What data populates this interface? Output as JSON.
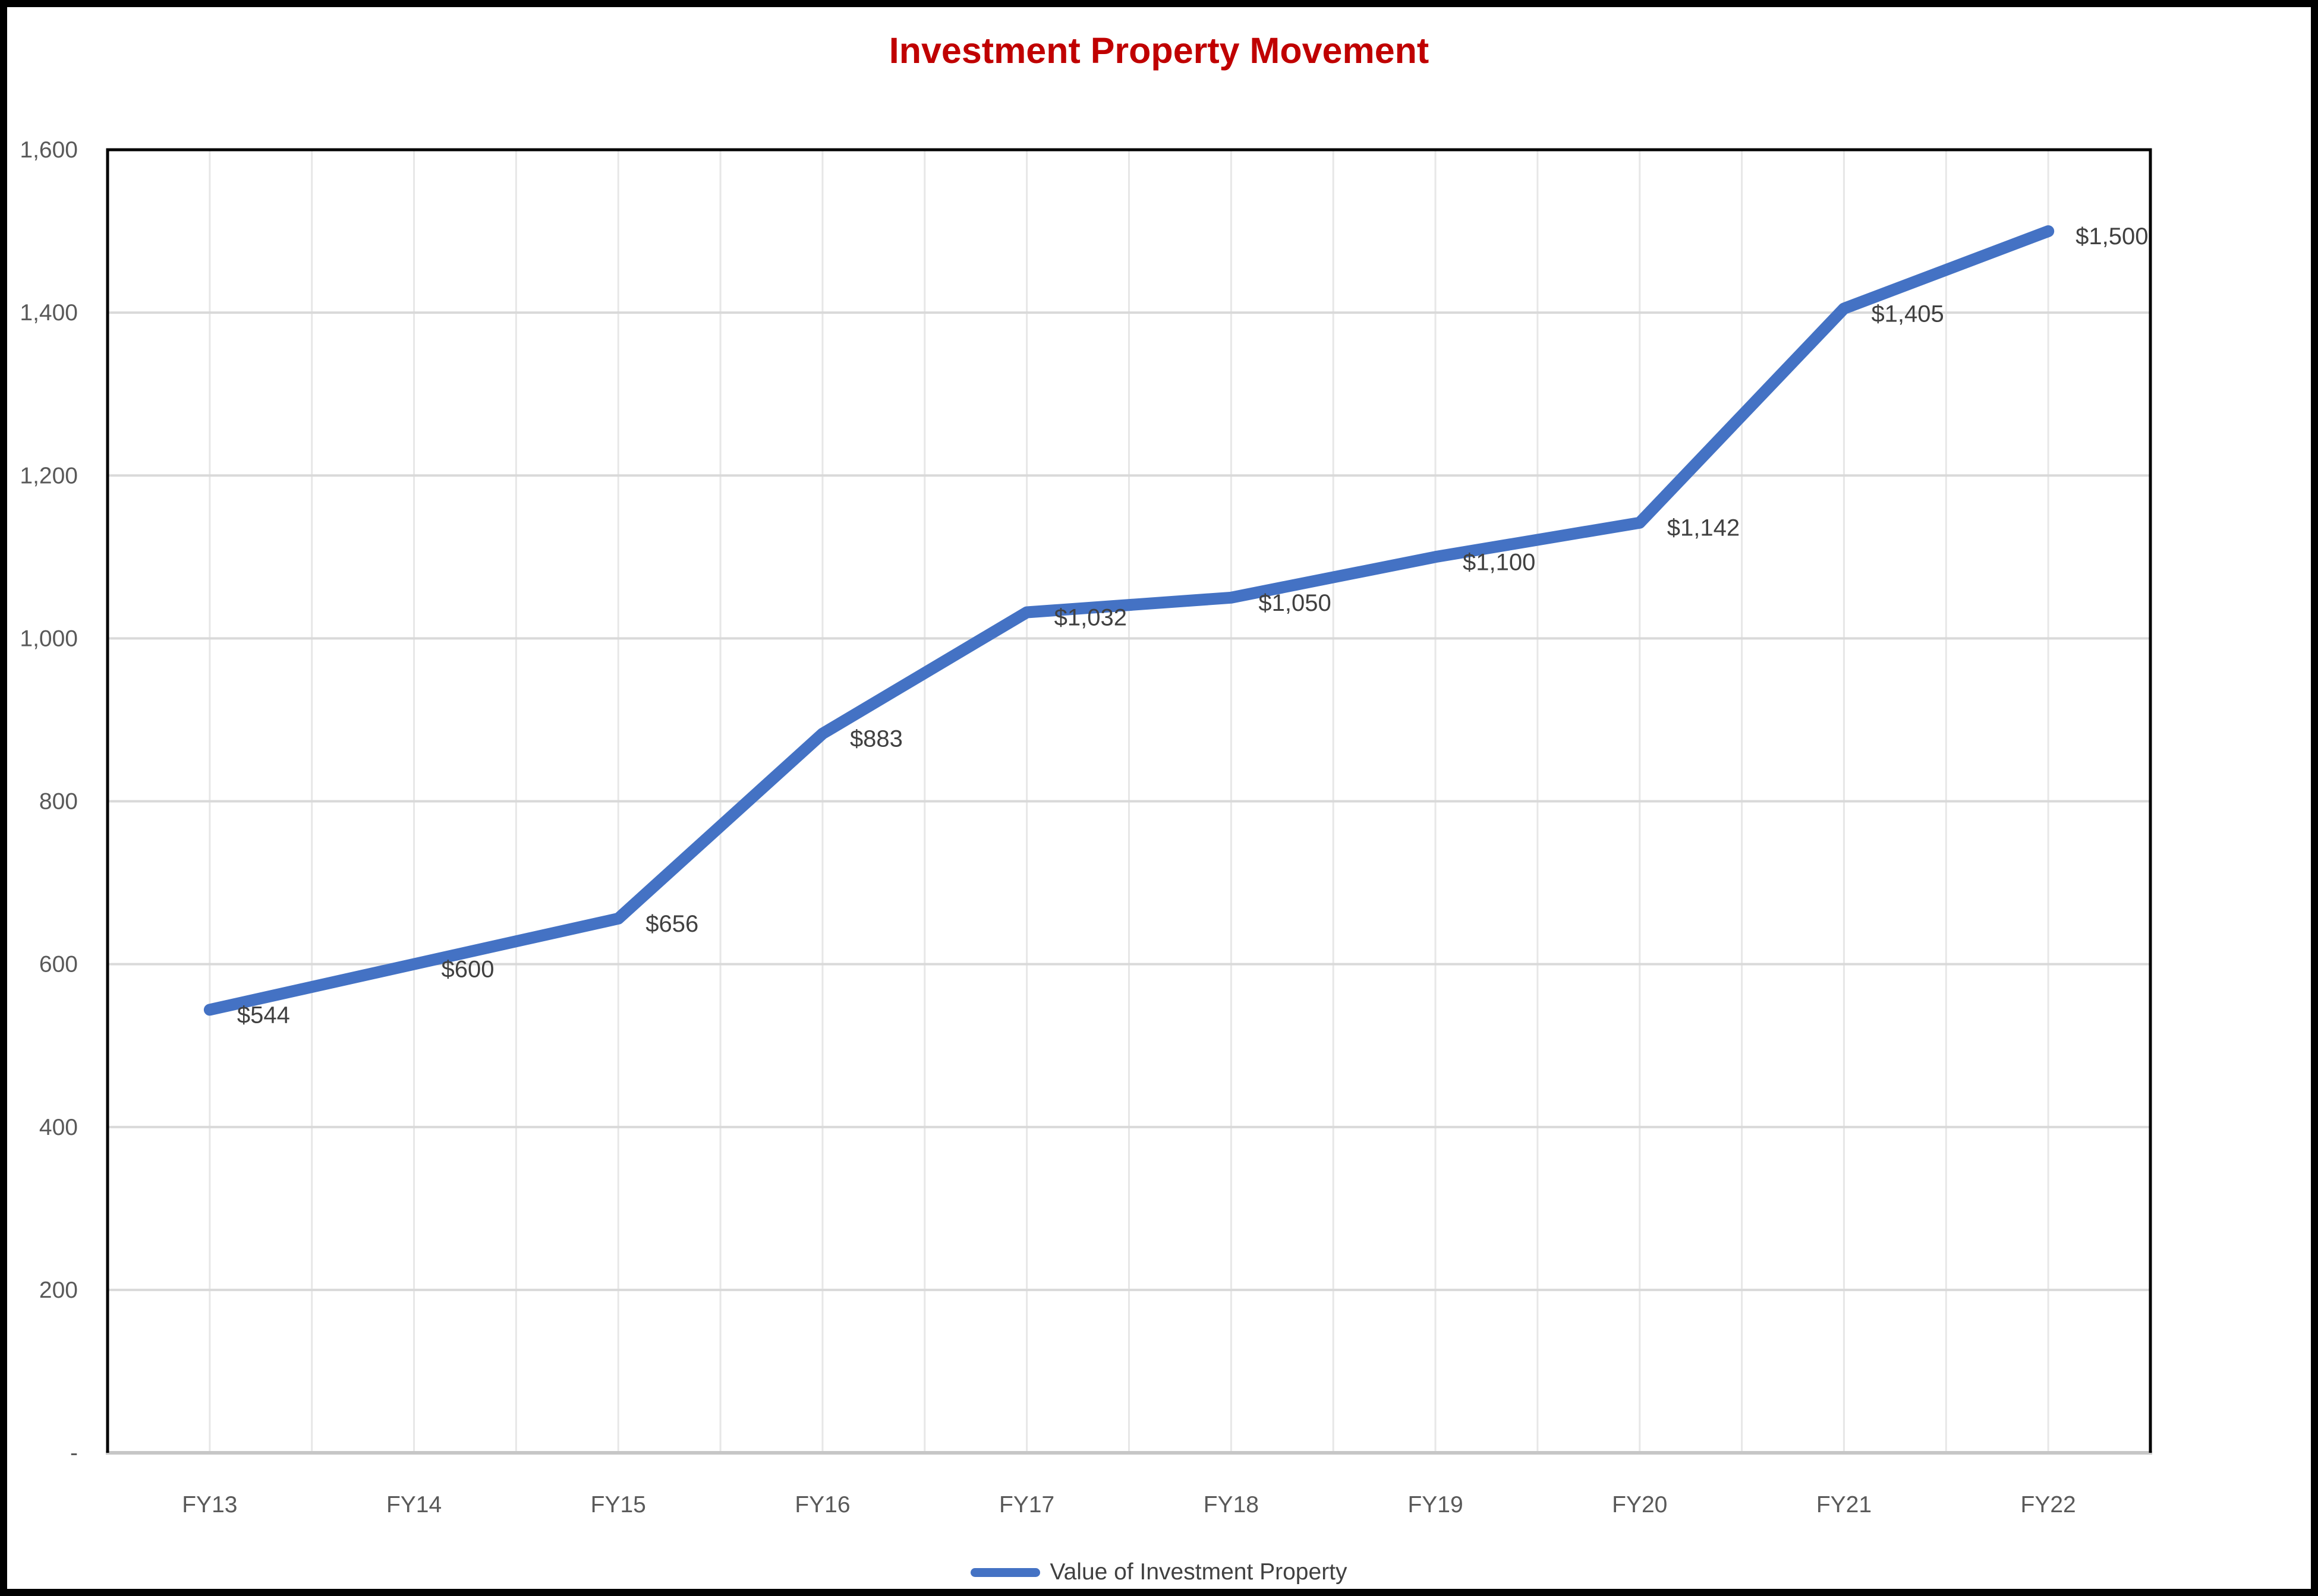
{
  "title": {
    "text": "Investment Property Movement"
  },
  "legend": {
    "items": [
      {
        "label": "Value of Investment Property"
      }
    ]
  },
  "colors": {
    "title": "#C00000",
    "series_line": "#4472C4",
    "data_label": "#404040",
    "axis_text": "#595959",
    "gridline_h": "#D9D9D9",
    "gridline_v": "#E7E7E7",
    "plot_border": "#000000",
    "x_axis_line": "#C6C6C6",
    "frame": "#000000",
    "background": "#FFFFFF"
  },
  "chart_data": {
    "type": "line",
    "title": "Investment Property Movement",
    "categories": [
      "FY13",
      "FY14",
      "FY15",
      "FY16",
      "FY17",
      "FY18",
      "FY19",
      "FY20",
      "FY21",
      "FY22"
    ],
    "series": [
      {
        "name": "Value of Investment Property",
        "values": [
          544,
          600,
          656,
          883,
          1032,
          1050,
          1100,
          1142,
          1405,
          1500
        ],
        "data_labels": [
          "$544",
          "$600",
          "$656",
          "$883",
          "$1,032",
          "$1,050",
          "$1,100",
          "$1,142",
          "$1,405",
          "$1,500"
        ]
      }
    ],
    "xlabel": "",
    "ylabel": "",
    "ylim": [
      0,
      1600
    ],
    "y_ticks": [
      {
        "value": 0,
        "label": "-"
      },
      {
        "value": 200,
        "label": "200"
      },
      {
        "value": 400,
        "label": "400"
      },
      {
        "value": 600,
        "label": "600"
      },
      {
        "value": 800,
        "label": "800"
      },
      {
        "value": 1000,
        "label": "1,000"
      },
      {
        "value": 1200,
        "label": "1,200"
      },
      {
        "value": 1400,
        "label": "1,400"
      },
      {
        "value": 1600,
        "label": "1,600"
      }
    ],
    "grid": {
      "horizontal": true,
      "vertical": true,
      "vertical_lines_per_category": 2
    },
    "legend_position": "bottom"
  }
}
